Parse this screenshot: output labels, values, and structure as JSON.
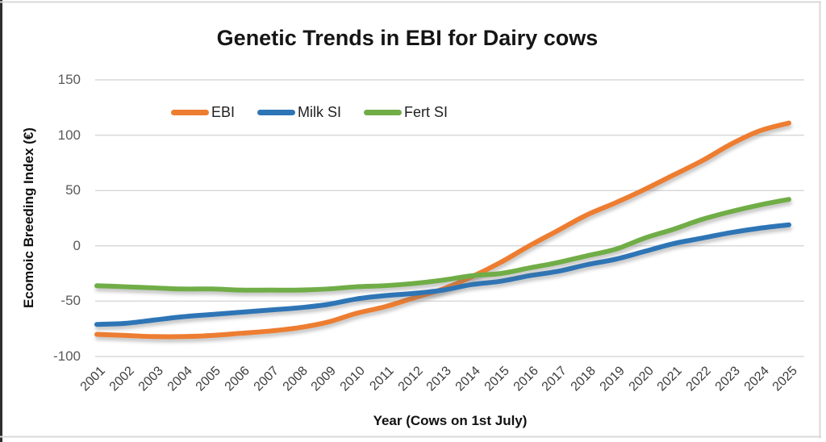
{
  "chart_data": {
    "type": "line",
    "title": "Genetic Trends in EBI for Dairy cows",
    "xlabel": "Year (Cows on 1st July)",
    "ylabel": "Ecomoic Breeding Index (€)",
    "x": [
      "2001",
      "2002",
      "2003",
      "2004",
      "2005",
      "2006",
      "2007",
      "2008",
      "2009",
      "2010",
      "2011",
      "2012",
      "2013",
      "2014",
      "2015",
      "2016",
      "2017",
      "2018",
      "2019",
      "2020",
      "2021",
      "2022",
      "2023",
      "2024",
      "2025"
    ],
    "series": [
      {
        "name": "EBI",
        "color": "#ED7D31",
        "values": [
          -80,
          -81,
          -82,
          -82,
          -81,
          -79,
          -77,
          -74,
          -69,
          -61,
          -55,
          -47,
          -39,
          -28,
          -15,
          0,
          14,
          28,
          39,
          51,
          64,
          77,
          92,
          104,
          111
        ]
      },
      {
        "name": "Milk SI",
        "color": "#2E75B6",
        "values": [
          -71,
          -70,
          -67,
          -64,
          -62,
          -60,
          -58,
          -56,
          -53,
          -48,
          -45,
          -43,
          -40,
          -35,
          -32,
          -27,
          -23,
          -17,
          -12,
          -5,
          2,
          7,
          12,
          16,
          19
        ]
      },
      {
        "name": "Fert SI",
        "color": "#70AD47",
        "values": [
          -36,
          -37,
          -38,
          -39,
          -39,
          -40,
          -40,
          -40,
          -39,
          -37,
          -36,
          -34,
          -31,
          -27,
          -25,
          -20,
          -15,
          -9,
          -3,
          7,
          15,
          24,
          31,
          37,
          42
        ]
      }
    ],
    "ylim": [
      -100,
      150
    ],
    "yticks": [
      150,
      100,
      50,
      0,
      -50,
      -100
    ],
    "grid": true,
    "gridline_color": "#d9d9d9",
    "legend_position": "top-left-inside",
    "smooth": true
  }
}
